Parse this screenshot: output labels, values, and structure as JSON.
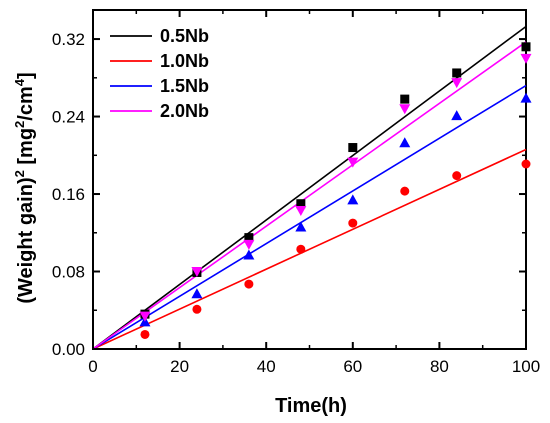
{
  "chart_data": {
    "type": "scatter",
    "xlabel": "Time(h)",
    "ylabel": {
      "part1": "(Weight gain)",
      "exp1": "2",
      "part2": " [mg",
      "exp2": "2",
      "part3": "/cm",
      "exp3": "4",
      "part4": "]"
    },
    "xlim": [
      0,
      100
    ],
    "ylim": [
      0,
      0.35
    ],
    "xticks": [
      0,
      20,
      40,
      60,
      80,
      100
    ],
    "yticks": [
      0.0,
      0.08,
      0.16,
      0.24,
      0.32
    ],
    "ytick_labels": [
      "0.00",
      "0.08",
      "0.16",
      "0.24",
      "0.32"
    ],
    "legend_position": "top-left",
    "series": [
      {
        "name": "0.5Nb",
        "color": "#000000",
        "marker": "square",
        "x": [
          12,
          24,
          36,
          48,
          60,
          72,
          84,
          100
        ],
        "y": [
          0.036,
          0.079,
          0.115,
          0.15,
          0.208,
          0.258,
          0.285,
          0.312
        ],
        "fit": [
          [
            0,
            0
          ],
          [
            100,
            0.333
          ]
        ]
      },
      {
        "name": "1.0Nb",
        "color": "#ff0000",
        "marker": "circle",
        "x": [
          12,
          24,
          36,
          48,
          60,
          72,
          84,
          100
        ],
        "y": [
          0.015,
          0.041,
          0.067,
          0.103,
          0.13,
          0.163,
          0.179,
          0.191
        ],
        "fit": [
          [
            0,
            0
          ],
          [
            100,
            0.206
          ]
        ]
      },
      {
        "name": "1.5Nb",
        "color": "#0000ff",
        "marker": "triangle",
        "x": [
          12,
          24,
          36,
          48,
          60,
          72,
          84,
          100
        ],
        "y": [
          0.028,
          0.057,
          0.097,
          0.126,
          0.154,
          0.213,
          0.241,
          0.259
        ],
        "fit": [
          [
            0,
            0
          ],
          [
            100,
            0.272
          ]
        ]
      },
      {
        "name": "2.0Nb",
        "color": "#ff00ff",
        "marker": "triangle-down",
        "x": [
          12,
          24,
          36,
          48,
          60,
          72,
          84,
          100
        ],
        "y": [
          0.034,
          0.08,
          0.108,
          0.143,
          0.193,
          0.248,
          0.275,
          0.3
        ],
        "fit": [
          [
            0,
            0
          ],
          [
            100,
            0.317
          ]
        ]
      }
    ]
  }
}
